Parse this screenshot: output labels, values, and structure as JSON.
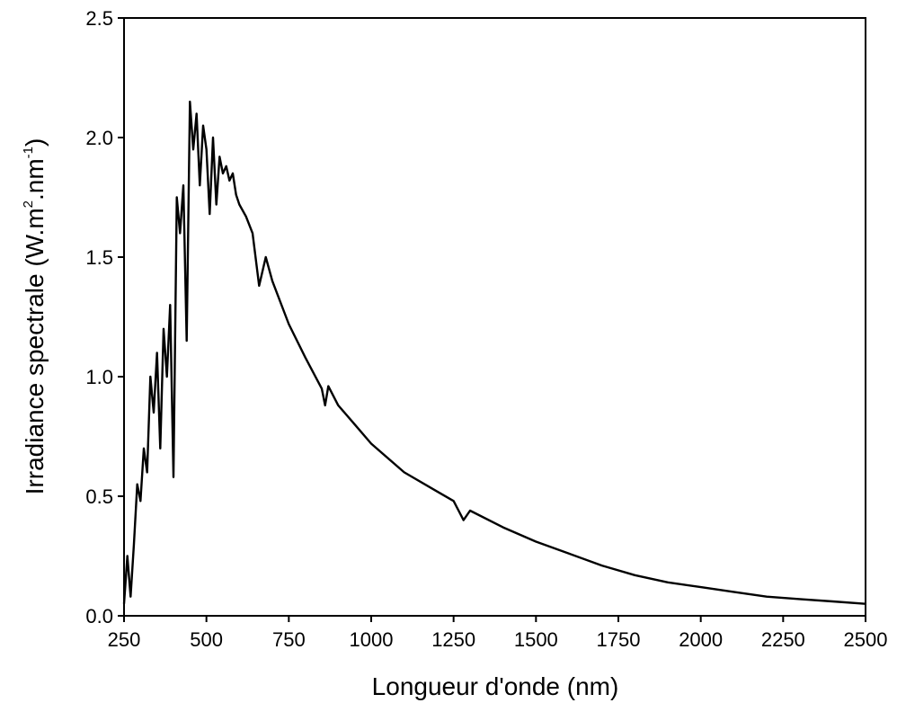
{
  "chart_data": {
    "type": "line",
    "title": "",
    "xlabel": "Longueur d'onde (nm)",
    "ylabel_parts": {
      "main": "Irradiance spectrale (W.m",
      "sup1": "2",
      "mid": ".nm",
      "sup2": "-1",
      "end": ")"
    },
    "xlim": [
      250,
      2500
    ],
    "ylim": [
      0,
      2.5
    ],
    "xticks": [
      250,
      500,
      750,
      1000,
      1250,
      1500,
      1750,
      2000,
      2250,
      2500
    ],
    "yticks": [
      0.0,
      0.5,
      1.0,
      1.5,
      2.0,
      2.5
    ],
    "xtick_labels": [
      "250",
      "500",
      "750",
      "1000",
      "1250",
      "1500",
      "1750",
      "2000",
      "2250",
      "2500"
    ],
    "ytick_labels": [
      "0.0",
      "0.5",
      "1.0",
      "1.5",
      "2.0",
      "2.5"
    ],
    "grid": false,
    "legend": "none",
    "line_color": "#000000",
    "series": [
      {
        "x": [
          250,
          260,
          270,
          280,
          290,
          300,
          310,
          320,
          330,
          340,
          350,
          360,
          370,
          380,
          390,
          400,
          410,
          420,
          430,
          440,
          450,
          460,
          470,
          480,
          490,
          500,
          510,
          520,
          530,
          540,
          550,
          560,
          570,
          580,
          590,
          600,
          620,
          640,
          660,
          680,
          700,
          750,
          800,
          850,
          860,
          870,
          900,
          950,
          1000,
          1100,
          1200,
          1250,
          1280,
          1300,
          1400,
          1500,
          1600,
          1700,
          1800,
          1900,
          2000,
          2100,
          2200,
          2300,
          2400,
          2500
        ],
        "y": [
          0.05,
          0.25,
          0.08,
          0.3,
          0.55,
          0.48,
          0.7,
          0.6,
          1.0,
          0.85,
          1.1,
          0.7,
          1.2,
          1.0,
          1.3,
          0.58,
          1.75,
          1.6,
          1.8,
          1.15,
          2.15,
          1.95,
          2.1,
          1.8,
          2.05,
          1.95,
          1.68,
          2.0,
          1.72,
          1.92,
          1.85,
          1.88,
          1.82,
          1.85,
          1.76,
          1.72,
          1.67,
          1.6,
          1.38,
          1.5,
          1.4,
          1.22,
          1.08,
          0.95,
          0.88,
          0.96,
          0.88,
          0.8,
          0.72,
          0.6,
          0.52,
          0.48,
          0.4,
          0.44,
          0.37,
          0.31,
          0.26,
          0.21,
          0.17,
          0.14,
          0.12,
          0.1,
          0.08,
          0.07,
          0.06,
          0.05
        ]
      }
    ]
  }
}
